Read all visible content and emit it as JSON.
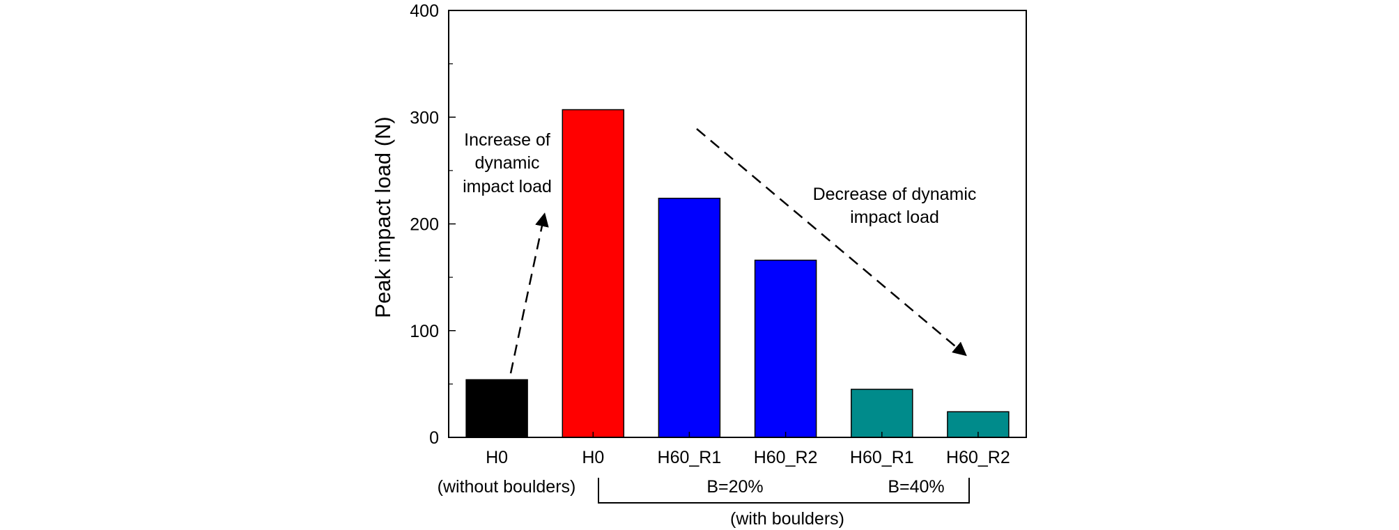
{
  "chart_data": {
    "type": "bar",
    "ylabel": "Peak impact load (N)",
    "xlabel": "",
    "ylim": [
      0,
      400
    ],
    "yticks": [
      0,
      100,
      200,
      300,
      400
    ],
    "yticks_minor": [
      50,
      150,
      250,
      350
    ],
    "grid": false,
    "categories": [
      "H0",
      "H0",
      "H60_R1",
      "H60_R2",
      "H60_R1",
      "H60_R2"
    ],
    "values": [
      54,
      307,
      224,
      166,
      45,
      24
    ],
    "colors": [
      "#000000",
      "#ff0000",
      "#0000ff",
      "#0000ff",
      "#008b8b",
      "#008b8b"
    ],
    "group_labels": {
      "without_boulders": "(without boulders)",
      "b20": "B=20%",
      "b40": "B=40%",
      "with_boulders": "(with boulders)"
    },
    "annotations": {
      "increase": [
        "Increase of",
        "dynamic",
        "impact load"
      ],
      "decrease": [
        "Decrease of dynamic",
        "impact load"
      ]
    }
  }
}
